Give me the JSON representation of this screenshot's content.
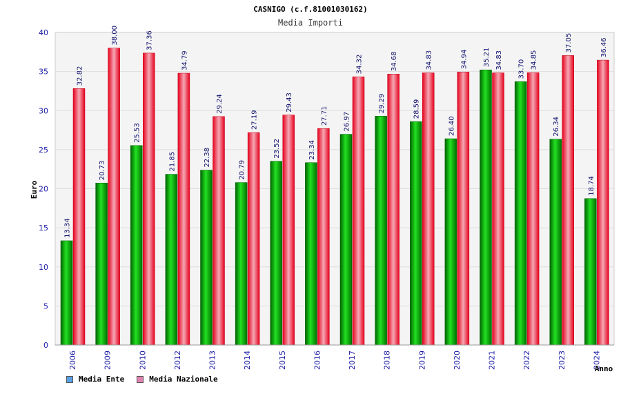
{
  "chart_data": {
    "type": "bar",
    "title": "CASNIGO (c.f.81001030162)",
    "subtitle": "Media Importi",
    "ylabel": "Euro",
    "xlabel": "Anno",
    "ylim": [
      0,
      40
    ],
    "yticks": [
      0,
      5,
      10,
      15,
      20,
      25,
      30,
      35,
      40
    ],
    "grid": true,
    "legend_position": "bottom-left",
    "categories": [
      "2006",
      "2009",
      "2010",
      "2012",
      "2013",
      "2014",
      "2015",
      "2016",
      "2017",
      "2018",
      "2019",
      "2020",
      "2021",
      "2022",
      "2023",
      "2024"
    ],
    "series": [
      {
        "name": "Media Ente",
        "color": "#00a000",
        "values": [
          13.34,
          20.73,
          25.53,
          21.85,
          22.38,
          20.79,
          23.52,
          23.34,
          26.97,
          29.29,
          28.59,
          26.4,
          35.21,
          33.7,
          26.34,
          18.74
        ],
        "labels": [
          "13.34",
          "20.73",
          "25.53",
          "21.85",
          "22.38",
          "20.79",
          "23.52",
          "23.34",
          "26.97",
          "29.29",
          "28.59",
          "26.40",
          "35.21",
          "33.70",
          "26.34",
          "18.74"
        ]
      },
      {
        "name": "Media Nazionale",
        "color": "#e8001c",
        "values": [
          32.82,
          38.0,
          37.36,
          34.79,
          29.24,
          27.19,
          29.43,
          27.71,
          34.32,
          34.68,
          34.83,
          34.94,
          34.83,
          34.85,
          37.05,
          36.46
        ],
        "labels": [
          "32.82",
          "38.00",
          "37.36",
          "34.79",
          "29.24",
          "27.19",
          "29.43",
          "27.71",
          "34.32",
          "34.68",
          "34.83",
          "34.94",
          "34.83",
          "34.85",
          "37.05",
          "36.46"
        ]
      }
    ],
    "legend": [
      {
        "label": "Media Ente",
        "swatch": "#5aa0e6"
      },
      {
        "label": "Media Nazionale",
        "swatch": "#e080b0"
      }
    ]
  }
}
